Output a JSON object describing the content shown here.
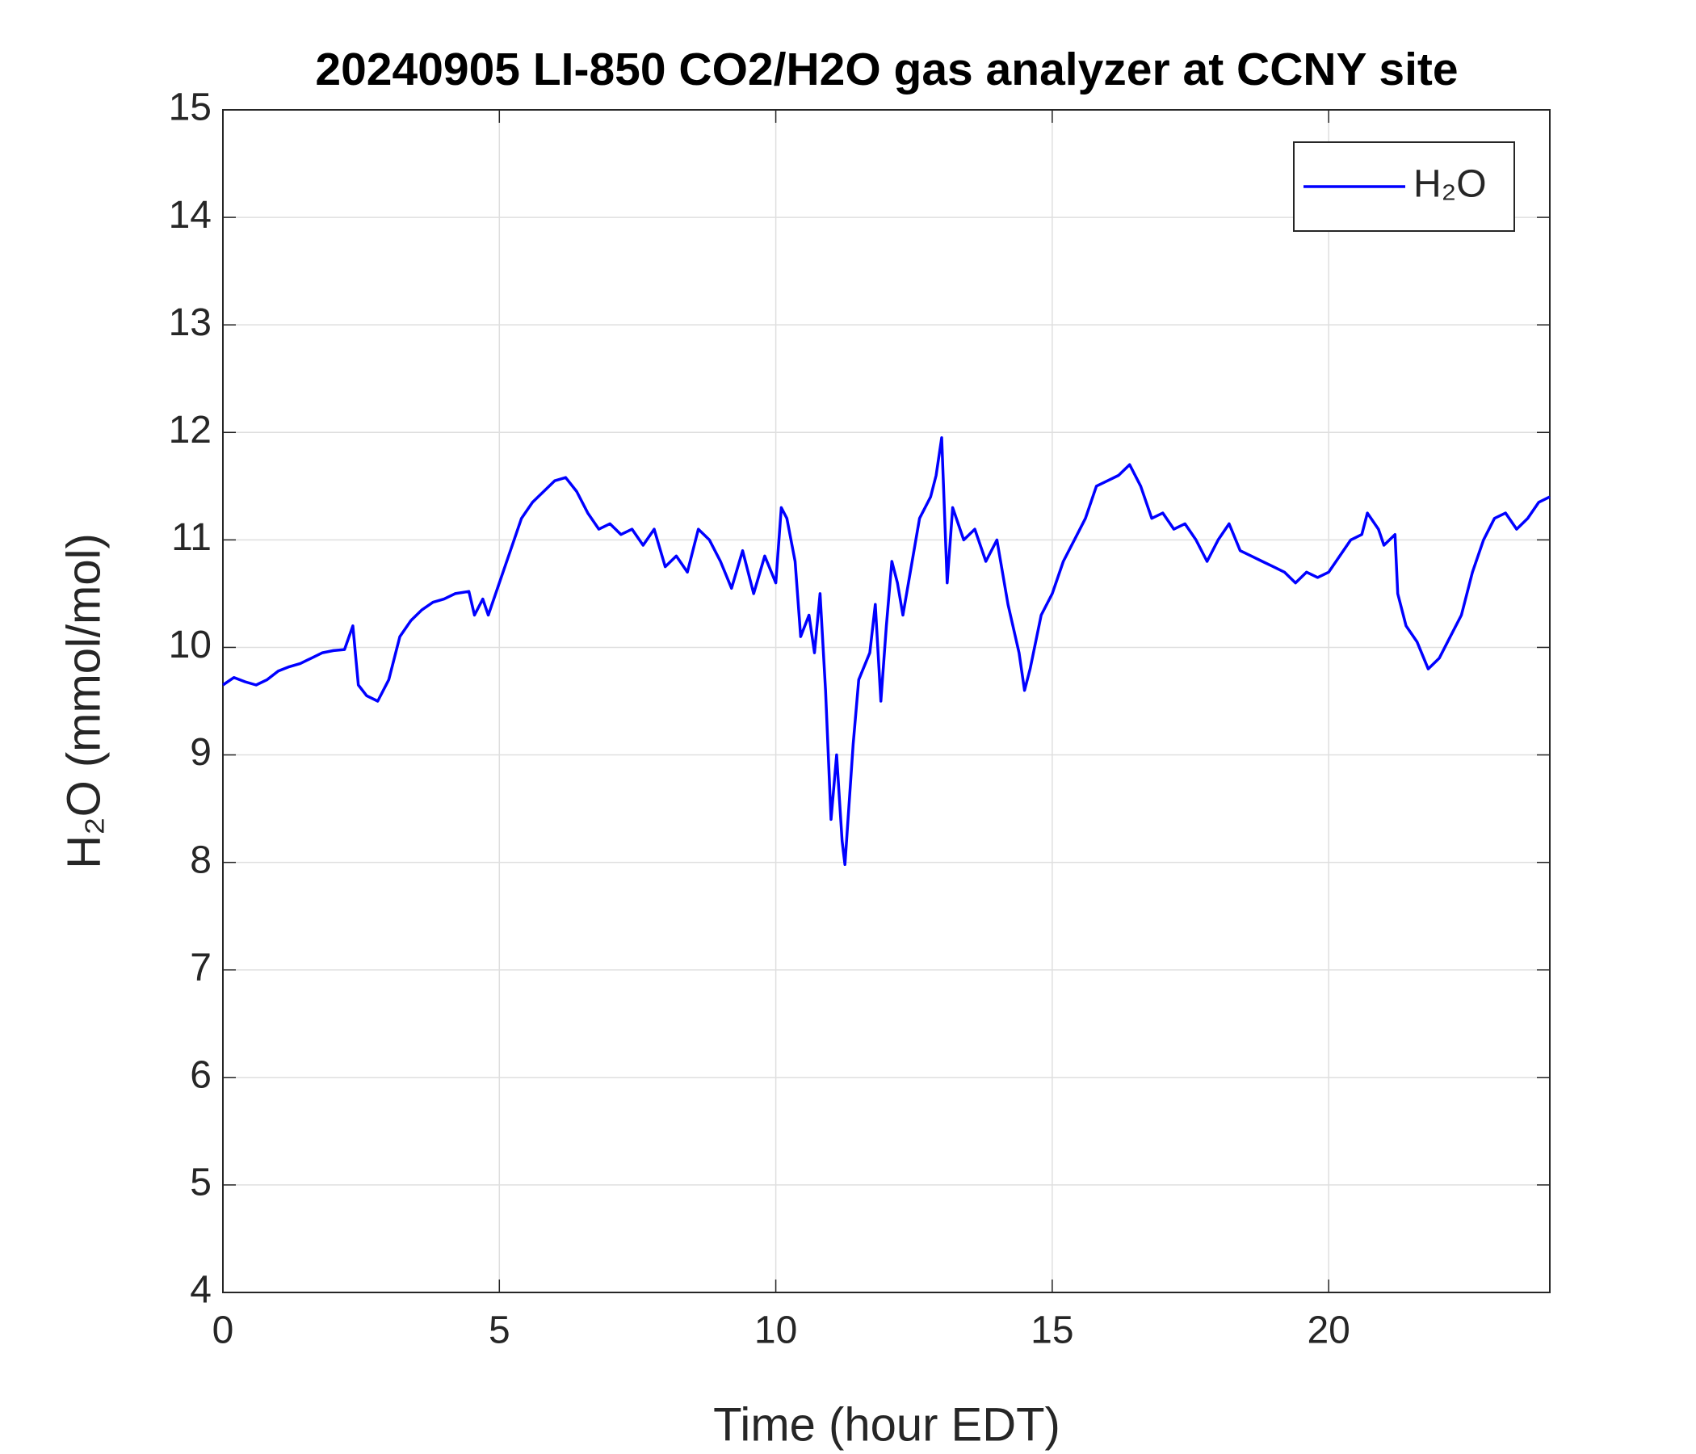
{
  "chart_data": {
    "type": "line",
    "title": "20240905 LI-850 CO2/H2O gas analyzer at CCNY site",
    "xlabel": "Time (hour EDT)",
    "ylabel": "H₂O (mmol/mol)",
    "x": [
      0,
      0.2,
      0.4,
      0.6,
      0.8,
      1.0,
      1.2,
      1.4,
      1.6,
      1.8,
      2.0,
      2.2,
      2.35,
      2.45,
      2.6,
      2.8,
      3.0,
      3.2,
      3.4,
      3.6,
      3.8,
      4.0,
      4.2,
      4.45,
      4.55,
      4.7,
      4.8,
      5.0,
      5.2,
      5.4,
      5.6,
      5.8,
      6.0,
      6.2,
      6.4,
      6.6,
      6.8,
      7.0,
      7.2,
      7.4,
      7.6,
      7.8,
      8.0,
      8.2,
      8.4,
      8.6,
      8.8,
      9.0,
      9.2,
      9.4,
      9.6,
      9.8,
      10.0,
      10.1,
      10.2,
      10.35,
      10.45,
      10.6,
      10.7,
      10.8,
      10.9,
      11.0,
      11.1,
      11.2,
      11.25,
      11.4,
      11.5,
      11.7,
      11.8,
      11.9,
      12.0,
      12.1,
      12.2,
      12.3,
      12.5,
      12.6,
      12.8,
      12.9,
      13.0,
      13.1,
      13.2,
      13.4,
      13.6,
      13.8,
      14.0,
      14.2,
      14.4,
      14.5,
      14.6,
      14.8,
      15.0,
      15.2,
      15.4,
      15.6,
      15.8,
      16.0,
      16.2,
      16.4,
      16.6,
      16.8,
      17.0,
      17.2,
      17.4,
      17.6,
      17.8,
      18.0,
      18.2,
      18.4,
      18.6,
      18.8,
      19.0,
      19.2,
      19.4,
      19.6,
      19.8,
      20.0,
      20.2,
      20.4,
      20.6,
      20.7,
      20.9,
      21.0,
      21.2,
      21.25,
      21.4,
      21.6,
      21.8,
      22.0,
      22.2,
      22.4,
      22.6,
      22.8,
      23.0,
      23.2,
      23.4,
      23.6,
      23.8,
      24.0
    ],
    "series": [
      {
        "name": "H₂O",
        "color": "#0000ff",
        "values": [
          9.65,
          9.72,
          9.68,
          9.65,
          9.7,
          9.78,
          9.82,
          9.85,
          9.9,
          9.95,
          9.97,
          9.98,
          10.2,
          9.65,
          9.55,
          9.5,
          9.7,
          10.1,
          10.25,
          10.35,
          10.42,
          10.45,
          10.5,
          10.52,
          10.3,
          10.45,
          10.3,
          10.6,
          10.9,
          11.2,
          11.35,
          11.45,
          11.55,
          11.58,
          11.45,
          11.25,
          11.1,
          11.15,
          11.05,
          11.1,
          10.95,
          11.1,
          10.75,
          10.85,
          10.7,
          11.1,
          11.0,
          10.8,
          10.55,
          10.9,
          10.5,
          10.85,
          10.6,
          11.3,
          11.2,
          10.8,
          10.1,
          10.3,
          9.95,
          10.5,
          9.6,
          8.4,
          9.0,
          8.2,
          7.98,
          9.1,
          9.7,
          9.95,
          10.4,
          9.5,
          10.2,
          10.8,
          10.6,
          10.3,
          10.9,
          11.2,
          11.4,
          11.6,
          11.95,
          10.6,
          11.3,
          11.0,
          11.1,
          10.8,
          11.0,
          10.4,
          9.95,
          9.6,
          9.8,
          10.3,
          10.5,
          10.8,
          11.0,
          11.2,
          11.5,
          11.55,
          11.6,
          11.7,
          11.5,
          11.2,
          11.25,
          11.1,
          11.15,
          11.0,
          10.8,
          11.0,
          11.15,
          10.9,
          10.85,
          10.8,
          10.75,
          10.7,
          10.6,
          10.7,
          10.65,
          10.7,
          10.85,
          11.0,
          11.05,
          11.25,
          11.1,
          10.95,
          11.05,
          10.5,
          10.2,
          10.05,
          9.8,
          9.9,
          10.1,
          10.3,
          10.7,
          11.0,
          11.2,
          11.25,
          11.1,
          11.2,
          11.35,
          11.4
        ]
      }
    ],
    "xlim": [
      0,
      24
    ],
    "xticks": [
      0,
      5,
      10,
      15,
      20
    ],
    "ylim": [
      4,
      15
    ],
    "yticks": [
      4,
      5,
      6,
      7,
      8,
      9,
      10,
      11,
      12,
      13,
      14,
      15
    ],
    "grid": true,
    "legend": "northeast"
  }
}
